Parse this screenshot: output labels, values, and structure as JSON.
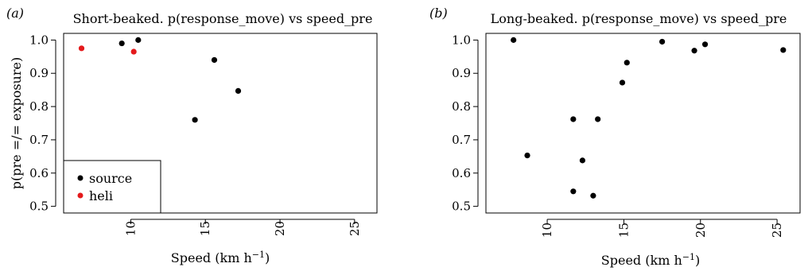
{
  "chart_data": [
    {
      "type": "scatter",
      "panel_label": "(a)",
      "title": "Short-beaked. p(response_move) vs speed_pre",
      "xlabel": "Speed (km h",
      "xlabel_sup": "−1",
      "xlabel_end": ")",
      "ylabel": "p(pre =/= exposure)",
      "xlim": [
        5.5,
        26.5
      ],
      "ylim": [
        0.48,
        1.02
      ],
      "xticks": [
        "10",
        "15",
        "20",
        "25"
      ],
      "yticks": [
        "0.5",
        "0.6",
        "0.7",
        "0.8",
        "0.9",
        "1.0"
      ],
      "grid": false,
      "legend_position": "bottom-left",
      "series": [
        {
          "name": "source",
          "color": "#000000",
          "x": [
            9.4,
            10.5,
            14.3,
            15.6,
            17.2
          ],
          "y": [
            0.99,
            1.0,
            0.76,
            0.94,
            0.847
          ]
        },
        {
          "name": "heli",
          "color": "#e41a1c",
          "x": [
            6.7,
            10.2
          ],
          "y": [
            0.975,
            0.965
          ]
        }
      ]
    },
    {
      "type": "scatter",
      "panel_label": "(b)",
      "title": "Long-beaked. p(response_move) vs speed_pre",
      "xlabel": "Speed (km h",
      "xlabel_sup": "−1",
      "xlabel_end": ")",
      "ylabel": "",
      "xlim": [
        6.0,
        26.5
      ],
      "ylim": [
        0.48,
        1.02
      ],
      "xticks": [
        "10",
        "15",
        "20",
        "25"
      ],
      "yticks": [
        "0.5",
        "0.6",
        "0.7",
        "0.8",
        "0.9",
        "1.0"
      ],
      "grid": false,
      "series": [
        {
          "name": "",
          "color": "#000000",
          "x": [
            7.8,
            8.7,
            11.7,
            11.7,
            12.3,
            13.0,
            13.3,
            14.9,
            15.2,
            17.5,
            19.6,
            20.3,
            25.4
          ],
          "y": [
            1.0,
            0.653,
            0.545,
            0.762,
            0.638,
            0.532,
            0.762,
            0.872,
            0.932,
            0.995,
            0.968,
            0.987,
            0.97
          ]
        }
      ]
    }
  ]
}
